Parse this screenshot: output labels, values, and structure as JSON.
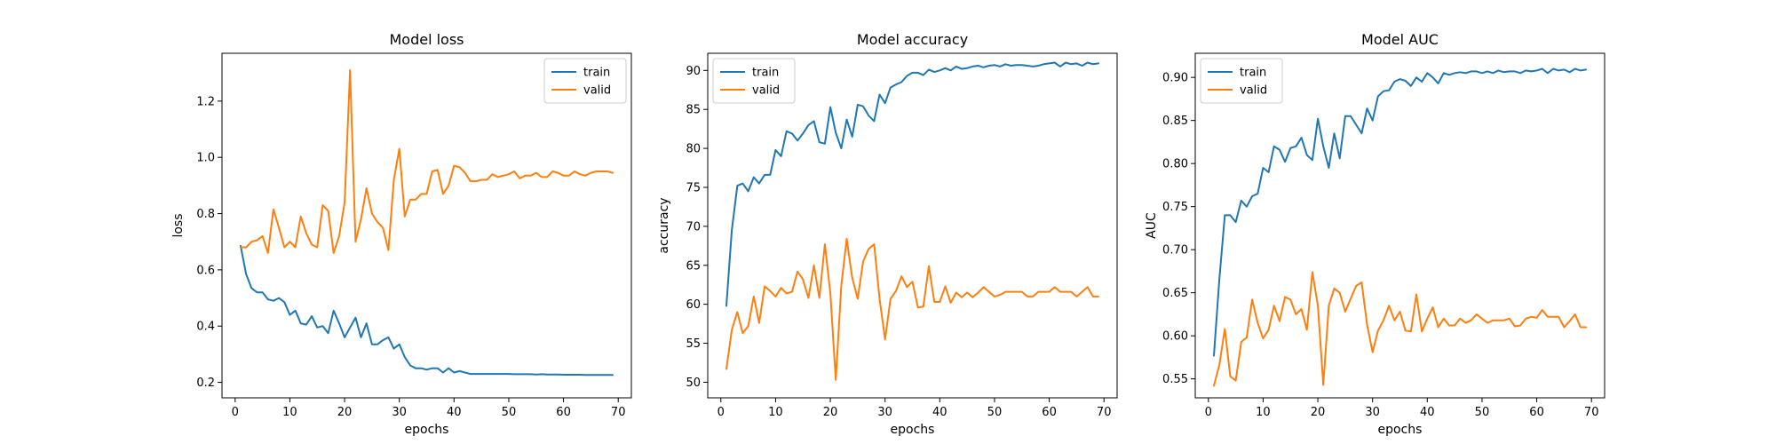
{
  "chart_data": [
    {
      "type": "line",
      "title": "Model loss",
      "xlabel": "epochs",
      "ylabel": "loss",
      "xlim": [
        -2.4,
        72.4
      ],
      "ylim": [
        0.145,
        1.37
      ],
      "xticks": [
        0,
        10,
        20,
        30,
        40,
        50,
        60,
        70
      ],
      "yticks": [
        0.2,
        0.4,
        0.6,
        0.8,
        1.0,
        1.2
      ],
      "ytick_labels": [
        "0.2",
        "0.4",
        "0.6",
        "0.8",
        "1.0",
        "1.2"
      ],
      "grid": false,
      "legend": "top-right",
      "x": [
        1,
        2,
        3,
        4,
        5,
        6,
        7,
        8,
        9,
        10,
        11,
        12,
        13,
        14,
        15,
        16,
        17,
        18,
        19,
        20,
        21,
        22,
        23,
        24,
        25,
        26,
        27,
        28,
        29,
        30,
        31,
        32,
        33,
        34,
        35,
        36,
        37,
        38,
        39,
        40,
        41,
        42,
        43,
        44,
        45,
        46,
        47,
        48,
        49,
        50,
        51,
        52,
        53,
        54,
        55,
        56,
        57,
        58,
        59,
        60,
        61,
        62,
        63,
        64,
        65,
        66,
        67,
        68,
        69
      ],
      "series": [
        {
          "name": "train",
          "color": "#1f77b4",
          "values": [
            0.685,
            0.585,
            0.535,
            0.52,
            0.52,
            0.495,
            0.49,
            0.5,
            0.485,
            0.44,
            0.455,
            0.41,
            0.405,
            0.435,
            0.395,
            0.4,
            0.375,
            0.455,
            0.41,
            0.36,
            0.395,
            0.43,
            0.36,
            0.41,
            0.335,
            0.335,
            0.35,
            0.36,
            0.32,
            0.335,
            0.29,
            0.26,
            0.25,
            0.25,
            0.245,
            0.25,
            0.25,
            0.235,
            0.25,
            0.235,
            0.24,
            0.235,
            0.23,
            0.23,
            0.23,
            0.23,
            0.23,
            0.23,
            0.23,
            0.23,
            0.229,
            0.229,
            0.229,
            0.229,
            0.228,
            0.229,
            0.228,
            0.228,
            0.228,
            0.227,
            0.227,
            0.227,
            0.227,
            0.226,
            0.226,
            0.226,
            0.226,
            0.226,
            0.226
          ]
        },
        {
          "name": "valid",
          "color": "#ff7f0e",
          "values": [
            0.68,
            0.68,
            0.7,
            0.705,
            0.72,
            0.66,
            0.815,
            0.75,
            0.68,
            0.7,
            0.68,
            0.79,
            0.73,
            0.69,
            0.68,
            0.83,
            0.81,
            0.66,
            0.72,
            0.84,
            1.31,
            0.7,
            0.78,
            0.89,
            0.8,
            0.77,
            0.75,
            0.67,
            0.92,
            1.03,
            0.79,
            0.85,
            0.85,
            0.87,
            0.87,
            0.95,
            0.955,
            0.87,
            0.9,
            0.97,
            0.965,
            0.945,
            0.915,
            0.915,
            0.92,
            0.92,
            0.94,
            0.93,
            0.935,
            0.94,
            0.95,
            0.925,
            0.935,
            0.935,
            0.945,
            0.93,
            0.93,
            0.95,
            0.945,
            0.935,
            0.935,
            0.95,
            0.94,
            0.935,
            0.945,
            0.95,
            0.95,
            0.95,
            0.945
          ]
        }
      ]
    },
    {
      "type": "line",
      "title": "Model accuracy",
      "xlabel": "epochs",
      "ylabel": "accuracy",
      "xlim": [
        -2.4,
        72.4
      ],
      "ylim": [
        48.0,
        92.2
      ],
      "xticks": [
        0,
        10,
        20,
        30,
        40,
        50,
        60,
        70
      ],
      "yticks": [
        50,
        55,
        60,
        65,
        70,
        75,
        80,
        85,
        90
      ],
      "ytick_labels": [
        "50",
        "55",
        "60",
        "65",
        "70",
        "75",
        "80",
        "85",
        "90"
      ],
      "grid": false,
      "legend": "top-left",
      "x": [
        1,
        2,
        3,
        4,
        5,
        6,
        7,
        8,
        9,
        10,
        11,
        12,
        13,
        14,
        15,
        16,
        17,
        18,
        19,
        20,
        21,
        22,
        23,
        24,
        25,
        26,
        27,
        28,
        29,
        30,
        31,
        32,
        33,
        34,
        35,
        36,
        37,
        38,
        39,
        40,
        41,
        42,
        43,
        44,
        45,
        46,
        47,
        48,
        49,
        50,
        51,
        52,
        53,
        54,
        55,
        56,
        57,
        58,
        59,
        60,
        61,
        62,
        63,
        64,
        65,
        66,
        67,
        68,
        69
      ],
      "series": [
        {
          "name": "train",
          "color": "#1f77b4",
          "values": [
            59.8,
            69.5,
            75.2,
            75.5,
            74.5,
            76.3,
            75.5,
            76.6,
            76.6,
            79.8,
            79.0,
            82.2,
            81.9,
            81.0,
            81.9,
            83.0,
            83.5,
            80.8,
            80.6,
            85.3,
            82.0,
            80.0,
            83.7,
            81.5,
            85.6,
            85.4,
            84.2,
            83.5,
            86.9,
            85.8,
            87.8,
            88.2,
            88.5,
            89.3,
            89.7,
            89.7,
            89.4,
            90.1,
            89.8,
            90.0,
            90.3,
            90.0,
            90.5,
            90.2,
            90.3,
            90.5,
            90.6,
            90.4,
            90.6,
            90.7,
            90.5,
            90.8,
            90.6,
            90.7,
            90.7,
            90.6,
            90.5,
            90.6,
            90.8,
            90.9,
            91.0,
            90.5,
            91.0,
            90.8,
            90.9,
            90.6,
            91.0,
            90.8,
            90.9
          ]
        },
        {
          "name": "valid",
          "color": "#ff7f0e",
          "values": [
            51.7,
            56.7,
            59.0,
            56.3,
            57.2,
            61.0,
            57.6,
            62.3,
            61.7,
            61.0,
            62.1,
            61.4,
            61.6,
            64.2,
            63.2,
            60.8,
            65.0,
            60.8,
            67.7,
            61.4,
            50.3,
            62.4,
            68.4,
            63.4,
            60.7,
            65.5,
            67.1,
            67.7,
            60.7,
            55.5,
            60.7,
            61.7,
            63.6,
            62.2,
            62.9,
            59.6,
            59.7,
            64.9,
            60.3,
            60.3,
            62.3,
            60.2,
            61.5,
            60.9,
            61.5,
            60.9,
            61.5,
            62.2,
            61.6,
            61.0,
            61.2,
            61.6,
            61.6,
            61.6,
            61.6,
            61.0,
            61.0,
            61.6,
            61.6,
            61.6,
            62.2,
            61.6,
            61.6,
            61.6,
            61.0,
            61.6,
            62.2,
            61.0,
            61.0
          ]
        }
      ]
    },
    {
      "type": "line",
      "title": "Model AUC",
      "xlabel": "epochs",
      "ylabel": "AUC",
      "xlim": [
        -2.4,
        72.4
      ],
      "ylim": [
        0.528,
        0.928
      ],
      "xticks": [
        0,
        10,
        20,
        30,
        40,
        50,
        60,
        70
      ],
      "yticks": [
        0.55,
        0.6,
        0.65,
        0.7,
        0.75,
        0.8,
        0.85,
        0.9
      ],
      "ytick_labels": [
        "0.55",
        "0.60",
        "0.65",
        "0.70",
        "0.75",
        "0.80",
        "0.85",
        "0.90"
      ],
      "grid": false,
      "legend": "top-left",
      "x": [
        1,
        2,
        3,
        4,
        5,
        6,
        7,
        8,
        9,
        10,
        11,
        12,
        13,
        14,
        15,
        16,
        17,
        18,
        19,
        20,
        21,
        22,
        23,
        24,
        25,
        26,
        27,
        28,
        29,
        30,
        31,
        32,
        33,
        34,
        35,
        36,
        37,
        38,
        39,
        40,
        41,
        42,
        43,
        44,
        45,
        46,
        47,
        48,
        49,
        50,
        51,
        52,
        53,
        54,
        55,
        56,
        57,
        58,
        59,
        60,
        61,
        62,
        63,
        64,
        65,
        66,
        67,
        68,
        69
      ],
      "series": [
        {
          "name": "train",
          "color": "#1f77b4",
          "values": [
            0.577,
            0.665,
            0.74,
            0.74,
            0.732,
            0.757,
            0.75,
            0.762,
            0.765,
            0.795,
            0.79,
            0.82,
            0.816,
            0.802,
            0.818,
            0.82,
            0.83,
            0.81,
            0.804,
            0.852,
            0.82,
            0.795,
            0.835,
            0.806,
            0.855,
            0.855,
            0.845,
            0.835,
            0.864,
            0.85,
            0.878,
            0.884,
            0.885,
            0.895,
            0.898,
            0.896,
            0.89,
            0.9,
            0.895,
            0.905,
            0.9,
            0.893,
            0.905,
            0.903,
            0.905,
            0.906,
            0.905,
            0.907,
            0.907,
            0.905,
            0.907,
            0.905,
            0.908,
            0.906,
            0.907,
            0.907,
            0.905,
            0.908,
            0.907,
            0.908,
            0.91,
            0.905,
            0.91,
            0.908,
            0.909,
            0.906,
            0.91,
            0.908,
            0.909
          ]
        },
        {
          "name": "valid",
          "color": "#ff7f0e",
          "values": [
            0.542,
            0.566,
            0.608,
            0.553,
            0.548,
            0.593,
            0.598,
            0.642,
            0.615,
            0.597,
            0.607,
            0.635,
            0.617,
            0.645,
            0.642,
            0.625,
            0.631,
            0.607,
            0.674,
            0.635,
            0.543,
            0.635,
            0.655,
            0.65,
            0.628,
            0.643,
            0.658,
            0.662,
            0.613,
            0.581,
            0.606,
            0.618,
            0.635,
            0.618,
            0.628,
            0.606,
            0.605,
            0.648,
            0.605,
            0.62,
            0.633,
            0.61,
            0.62,
            0.612,
            0.612,
            0.62,
            0.615,
            0.618,
            0.625,
            0.62,
            0.615,
            0.618,
            0.618,
            0.618,
            0.62,
            0.611,
            0.612,
            0.62,
            0.622,
            0.621,
            0.63,
            0.622,
            0.622,
            0.622,
            0.61,
            0.617,
            0.625,
            0.61,
            0.61
          ]
        }
      ]
    }
  ]
}
